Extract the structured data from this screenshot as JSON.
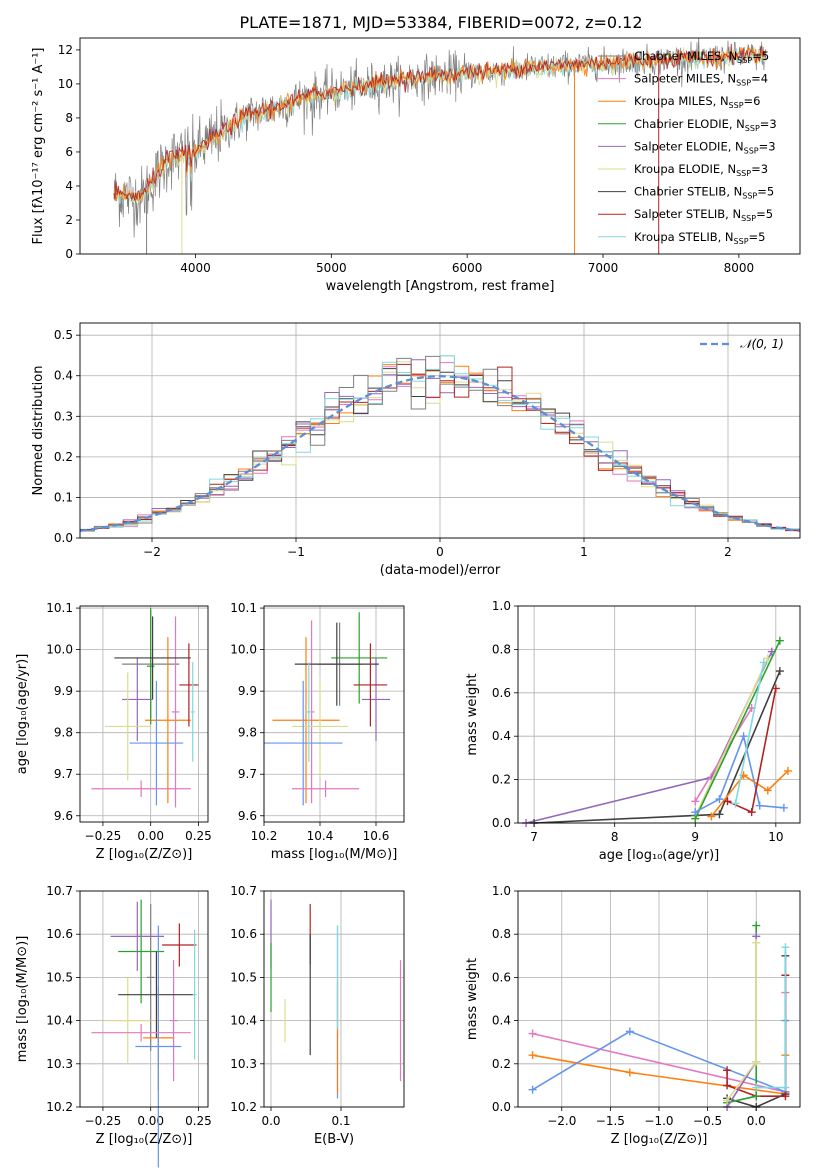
{
  "figure_title": "PLATE=1871, MJD=53384, FIBERID=0072, z=0.12",
  "colors": {
    "chabrier_miles": "#808080",
    "salpeter_miles": "#e377c2",
    "kroupa_miles": "#ff7f0e",
    "chabrier_elodie": "#2ca02c",
    "salpeter_elodie": "#9467bd",
    "kroupa_elodie": "#dbdb8d",
    "chabrier_stelib": "#404040",
    "salpeter_stelib": "#b22222",
    "kroupa_stelib": "#6495ed",
    "light_blue": "#80d8e0",
    "gaussian": "#5b8fd6"
  },
  "chart_data": [
    {
      "id": "spectrum",
      "type": "line",
      "title": "",
      "xlabel": "wavelength [Angstrom, rest frame]",
      "ylabel": "Flux [fλ10⁻¹⁷ erg cm⁻² s⁻¹ A⁻¹]",
      "xlim": [
        3150,
        8450
      ],
      "ylim": [
        0,
        12.7
      ],
      "xticks": [
        4000,
        5000,
        6000,
        7000,
        8000
      ],
      "yticks": [
        0,
        2,
        4,
        6,
        8,
        10,
        12
      ],
      "grid": false,
      "legend_position": "top-right",
      "legend": [
        {
          "name": "Chabrier MILES, N",
          "sub": "SSP",
          "suffix": "=5"
        },
        {
          "name": "Salpeter MILES, N",
          "sub": "SSP",
          "suffix": "=4"
        },
        {
          "name": "Kroupa MILES, N",
          "sub": "SSP",
          "suffix": "=6"
        },
        {
          "name": "Chabrier ELODIE, N",
          "sub": "SSP",
          "suffix": "=3"
        },
        {
          "name": "Salpeter ELODIE, N",
          "sub": "SSP",
          "suffix": "=3"
        },
        {
          "name": "Kroupa ELODIE, N",
          "sub": "SSP",
          "suffix": "=3"
        },
        {
          "name": "Chabrier STELIB, N",
          "sub": "SSP",
          "suffix": "=5"
        },
        {
          "name": "Salpeter STELIB, N",
          "sub": "SSP",
          "suffix": "=5"
        },
        {
          "name": "Kroupa STELIB, N",
          "sub": "SSP",
          "suffix": "=5"
        }
      ],
      "continuum_x": [
        3400,
        3600,
        3800,
        4000,
        4200,
        4400,
        4600,
        4800,
        5000,
        5200,
        5400,
        5600,
        5800,
        6000,
        6200,
        6400,
        6600,
        6800,
        7000,
        7200,
        7400,
        7600,
        7800,
        8000,
        8200
      ],
      "continuum_y": [
        3.5,
        3.3,
        5.6,
        6.0,
        7.2,
        8.2,
        8.6,
        9.2,
        9.5,
        9.8,
        10.1,
        10.3,
        10.5,
        10.6,
        10.7,
        10.9,
        11.0,
        11.1,
        11.2,
        11.3,
        11.4,
        11.5,
        11.5,
        11.6,
        11.7
      ]
    },
    {
      "id": "residuals",
      "type": "bar",
      "title": "",
      "xlabel": "(data-model)/error",
      "ylabel": "Normed distribution",
      "xlim": [
        -2.5,
        2.5
      ],
      "ylim": [
        0,
        0.53
      ],
      "xticks": [
        -2,
        -1,
        0,
        1,
        2
      ],
      "yticks": [
        0.0,
        0.1,
        0.2,
        0.3,
        0.4,
        0.5
      ],
      "grid": true,
      "legend_position": "top-right",
      "legend_label": "𝒩(0, 1)",
      "bin_width": 0.1,
      "reference": "normal(0,1) pdf"
    },
    {
      "id": "age_vs_Z",
      "type": "scatter",
      "xlabel": "Z [log₁₀(Z/Z⊙)]",
      "ylabel": "age  [log₁₀(age/yr)]",
      "xlim": [
        -0.37,
        0.3
      ],
      "ylim": [
        9.585,
        10.105
      ],
      "xticks": [
        -0.25,
        0.0,
        0.25
      ],
      "yticks": [
        9.6,
        9.7,
        9.8,
        9.9,
        10.0,
        10.1
      ],
      "grid": true,
      "points": [
        {
          "c": "chabrier_miles",
          "x": 0.0,
          "xe": 0.15,
          "y": 9.965,
          "ye": 0.13
        },
        {
          "c": "salpeter_miles",
          "x": 0.13,
          "xe": 0.02,
          "y": 9.85,
          "ye": 0.23
        },
        {
          "c": "kroupa_miles",
          "x": 0.09,
          "xe": 0.12,
          "y": 9.83,
          "ye": 0.2
        },
        {
          "c": "chabrier_elodie",
          "x": 0.0,
          "xe": 0.02,
          "y": 9.96,
          "ye": 0.14
        },
        {
          "c": "salpeter_elodie",
          "x": -0.07,
          "xe": 0.08,
          "y": 9.88,
          "ye": 0.1
        },
        {
          "c": "kroupa_elodie",
          "x": -0.12,
          "xe": 0.12,
          "y": 9.815,
          "ye": 0.13
        },
        {
          "c": "chabrier_stelib",
          "x": 0.01,
          "xe": 0.2,
          "y": 9.98,
          "ye": 0.1
        },
        {
          "c": "salpeter_stelib",
          "x": 0.2,
          "xe": 0.05,
          "y": 9.915,
          "ye": 0.1
        },
        {
          "c": "kroupa_stelib",
          "x": 0.03,
          "xe": 0.14,
          "y": 9.775,
          "ye": 0.15
        },
        {
          "c": "light_blue",
          "x": 0.22,
          "xe": 0.01,
          "y": 9.85,
          "ye": 0.12
        },
        {
          "c": "salpeter_miles",
          "x": -0.05,
          "xe": 0.26,
          "y": 9.665,
          "ye": 0.02
        }
      ]
    },
    {
      "id": "age_vs_mass",
      "type": "scatter",
      "xlabel": "mass [log₁₀(M/M⊙)]",
      "ylabel": "",
      "xlim": [
        10.2,
        10.7
      ],
      "ylim": [
        9.585,
        10.105
      ],
      "xticks": [
        10.2,
        10.4,
        10.6
      ],
      "yticks": [
        9.6,
        9.7,
        9.8,
        9.9,
        10.0,
        10.1
      ],
      "grid": true,
      "points": [
        {
          "c": "chabrier_miles",
          "x": 10.47,
          "xe": 0.08,
          "y": 9.965,
          "ye": 0.1
        },
        {
          "c": "salpeter_miles",
          "x": 10.37,
          "xe": 0.01,
          "y": 9.85,
          "ye": 0.22
        },
        {
          "c": "kroupa_miles",
          "x": 10.35,
          "xe": 0.12,
          "y": 9.83,
          "ye": 0.2
        },
        {
          "c": "chabrier_elodie",
          "x": 10.54,
          "xe": 0.1,
          "y": 9.98,
          "ye": 0.11
        },
        {
          "c": "salpeter_elodie",
          "x": 10.6,
          "xe": 0.05,
          "y": 9.88,
          "ye": 0.1
        },
        {
          "c": "kroupa_elodie",
          "x": 10.4,
          "xe": 0.1,
          "y": 9.815,
          "ye": 0.12
        },
        {
          "c": "chabrier_stelib",
          "x": 10.46,
          "xe": 0.15,
          "y": 9.965,
          "ye": 0.1
        },
        {
          "c": "salpeter_stelib",
          "x": 10.58,
          "xe": 0.06,
          "y": 9.915,
          "ye": 0.1
        },
        {
          "c": "kroupa_stelib",
          "x": 10.34,
          "xe": 0.14,
          "y": 9.775,
          "ye": 0.15
        },
        {
          "c": "light_blue",
          "x": 10.36,
          "xe": 0.01,
          "y": 9.85,
          "ye": 0.12
        },
        {
          "c": "salpeter_miles",
          "x": 10.42,
          "xe": 0.12,
          "y": 9.665,
          "ye": 0.02
        }
      ]
    },
    {
      "id": "mw_vs_age",
      "type": "line",
      "xlabel": "age  [log₁₀(age/yr)]",
      "ylabel": "mass weight",
      "xlim": [
        6.8,
        10.3
      ],
      "ylim": [
        0.0,
        1.0
      ],
      "xticks": [
        7,
        8,
        9,
        10
      ],
      "yticks": [
        0.0,
        0.2,
        0.4,
        0.6,
        0.8,
        1.0
      ],
      "grid": true,
      "series": [
        {
          "c": "salpeter_elodie",
          "x": [
            6.9,
            9.2,
            9.95
          ],
          "y": [
            0.0,
            0.21,
            0.79
          ]
        },
        {
          "c": "chabrier_stelib",
          "x": [
            7.0,
            9.3,
            10.05
          ],
          "y": [
            0.0,
            0.04,
            0.7
          ]
        },
        {
          "c": "salpeter_miles",
          "x": [
            9.0,
            9.7
          ],
          "y": [
            0.1,
            0.53
          ]
        },
        {
          "c": "kroupa_elodie",
          "x": [
            9.0,
            9.9
          ],
          "y": [
            0.03,
            0.76
          ]
        },
        {
          "c": "chabrier_elodie",
          "x": [
            9.0,
            10.05
          ],
          "y": [
            0.02,
            0.84
          ]
        },
        {
          "c": "kroupa_stelib",
          "x": [
            9.0,
            9.3,
            9.6,
            9.8,
            10.1
          ],
          "y": [
            0.05,
            0.11,
            0.4,
            0.08,
            0.07
          ]
        },
        {
          "c": "kroupa_miles",
          "x": [
            9.2,
            9.6,
            9.9,
            10.15
          ],
          "y": [
            0.03,
            0.22,
            0.15,
            0.24
          ]
        },
        {
          "c": "salpeter_stelib",
          "x": [
            9.4,
            9.7,
            10.0
          ],
          "y": [
            0.1,
            0.05,
            0.62
          ]
        },
        {
          "c": "light_blue",
          "x": [
            9.5,
            9.85
          ],
          "y": [
            0.09,
            0.74
          ]
        }
      ]
    },
    {
      "id": "mass_vs_Z",
      "type": "scatter",
      "xlabel": "Z [log₁₀(Z/Z⊙)]",
      "ylabel": "mass [log₁₀(M/M⊙)]",
      "xlim": [
        -0.37,
        0.3
      ],
      "ylim": [
        10.2,
        10.7
      ],
      "xticks": [
        -0.25,
        0.0,
        0.25
      ],
      "yticks": [
        10.2,
        10.3,
        10.4,
        10.5,
        10.6,
        10.7
      ],
      "grid": true,
      "points": [
        {
          "c": "chabrier_miles",
          "x": 0.0,
          "xe": 0.02,
          "y": 10.5,
          "ye": 0.17
        },
        {
          "c": "salpeter_miles",
          "x": 0.12,
          "xe": 0.02,
          "y": 10.4,
          "ye": 0.14
        },
        {
          "c": "kroupa_miles",
          "x": 0.04,
          "xe": 0.08,
          "y": 10.36,
          "ye": 0.12
        },
        {
          "c": "chabrier_elodie",
          "x": -0.05,
          "xe": 0.12,
          "y": 10.56,
          "ye": 0.12
        },
        {
          "c": "salpeter_elodie",
          "x": -0.07,
          "xe": 0.14,
          "y": 10.595,
          "ye": 0.08
        },
        {
          "c": "kroupa_elodie",
          "x": -0.12,
          "xe": 0.12,
          "y": 10.4,
          "ye": 0.1
        },
        {
          "c": "chabrier_stelib",
          "x": 0.03,
          "xe": 0.2,
          "y": 10.46,
          "ye": 0.1
        },
        {
          "c": "salpeter_stelib",
          "x": 0.15,
          "xe": 0.09,
          "y": 10.575,
          "ye": 0.05
        },
        {
          "c": "kroupa_stelib",
          "x": 0.04,
          "xe": 0.12,
          "y": 10.34,
          "ye": 0.28
        },
        {
          "c": "light_blue",
          "x": 0.23,
          "xe": 0.01,
          "y": 10.46,
          "ye": 0.15
        },
        {
          "c": "salpeter_miles",
          "x": -0.05,
          "xe": 0.26,
          "y": 10.372,
          "ye": 0.02
        }
      ]
    },
    {
      "id": "mass_vs_ebv",
      "type": "scatter",
      "xlabel": "E(B-V)",
      "ylabel": "",
      "xlim": [
        -0.01,
        0.19
      ],
      "ylim": [
        10.2,
        10.7
      ],
      "xticks": [
        0.0,
        0.1
      ],
      "yticks": [
        10.2,
        10.3,
        10.4,
        10.5,
        10.6,
        10.7
      ],
      "grid": true,
      "points": [
        {
          "c": "salpeter_elodie",
          "x": 0.0,
          "y": 10.6,
          "ye": 0.08
        },
        {
          "c": "chabrier_elodie",
          "x": 0.0,
          "y": 10.5,
          "ye": 0.08
        },
        {
          "c": "kroupa_elodie",
          "x": 0.02,
          "y": 10.4,
          "ye": 0.05
        },
        {
          "c": "salpeter_stelib",
          "x": 0.056,
          "y": 10.6,
          "ye": 0.07
        },
        {
          "c": "chabrier_stelib",
          "x": 0.056,
          "y": 10.46,
          "ye": 0.14
        },
        {
          "c": "kroupa_stelib",
          "x": 0.095,
          "y": 10.42,
          "ye": 0.2
        },
        {
          "c": "kroupa_miles",
          "x": 0.095,
          "y": 10.36,
          "ye": 0.13
        },
        {
          "c": "light_blue",
          "x": 0.095,
          "y": 10.5,
          "ye": 0.12
        },
        {
          "c": "salpeter_miles",
          "x": 0.185,
          "y": 10.4,
          "ye": 0.14
        }
      ]
    },
    {
      "id": "mw_vs_Z",
      "type": "line",
      "xlabel": "Z [log₁₀(Z/Z⊙)]",
      "ylabel": "mass weight",
      "xlim": [
        -2.45,
        0.45
      ],
      "ylim": [
        0.0,
        1.0
      ],
      "xticks": [
        -2.0,
        -1.5,
        -1.0,
        -0.5,
        0.0
      ],
      "yticks": [
        0.0,
        0.2,
        0.4,
        0.6,
        0.8,
        1.0
      ],
      "grid": true,
      "series": [
        {
          "c": "salpeter_miles",
          "x": [
            -2.3,
            0.3,
            0.3
          ],
          "y": [
            0.34,
            0.07,
            0.53
          ]
        },
        {
          "c": "kroupa_miles",
          "x": [
            -2.3,
            -1.3,
            0.3,
            0.3
          ],
          "y": [
            0.24,
            0.16,
            0.06,
            0.24
          ]
        },
        {
          "c": "kroupa_stelib",
          "x": [
            -2.3,
            -1.3,
            0.3,
            0.3
          ],
          "y": [
            0.08,
            0.35,
            0.07,
            0.4
          ]
        },
        {
          "c": "chabrier_stelib",
          "x": [
            -0.3,
            0.0,
            0.3,
            0.3
          ],
          "y": [
            0.04,
            0.0,
            0.06,
            0.7
          ]
        },
        {
          "c": "salpeter_stelib",
          "x": [
            -0.3,
            -0.3,
            0.0,
            0.3,
            0.3
          ],
          "y": [
            0.17,
            0.1,
            0.05,
            0.05,
            0.61
          ]
        },
        {
          "c": "chabrier_elodie",
          "x": [
            -0.3,
            0.0,
            0.0
          ],
          "y": [
            0.02,
            0.05,
            0.84
          ]
        },
        {
          "c": "salpeter_elodie",
          "x": [
            -0.3,
            0.0,
            0.0
          ],
          "y": [
            0.0,
            0.21,
            0.79
          ]
        },
        {
          "c": "kroupa_elodie",
          "x": [
            -0.3,
            0.0,
            0.0
          ],
          "y": [
            0.03,
            0.21,
            0.76
          ]
        },
        {
          "c": "light_blue",
          "x": [
            0.0,
            0.3,
            0.3
          ],
          "y": [
            0.09,
            0.09,
            0.74
          ]
        }
      ]
    }
  ]
}
